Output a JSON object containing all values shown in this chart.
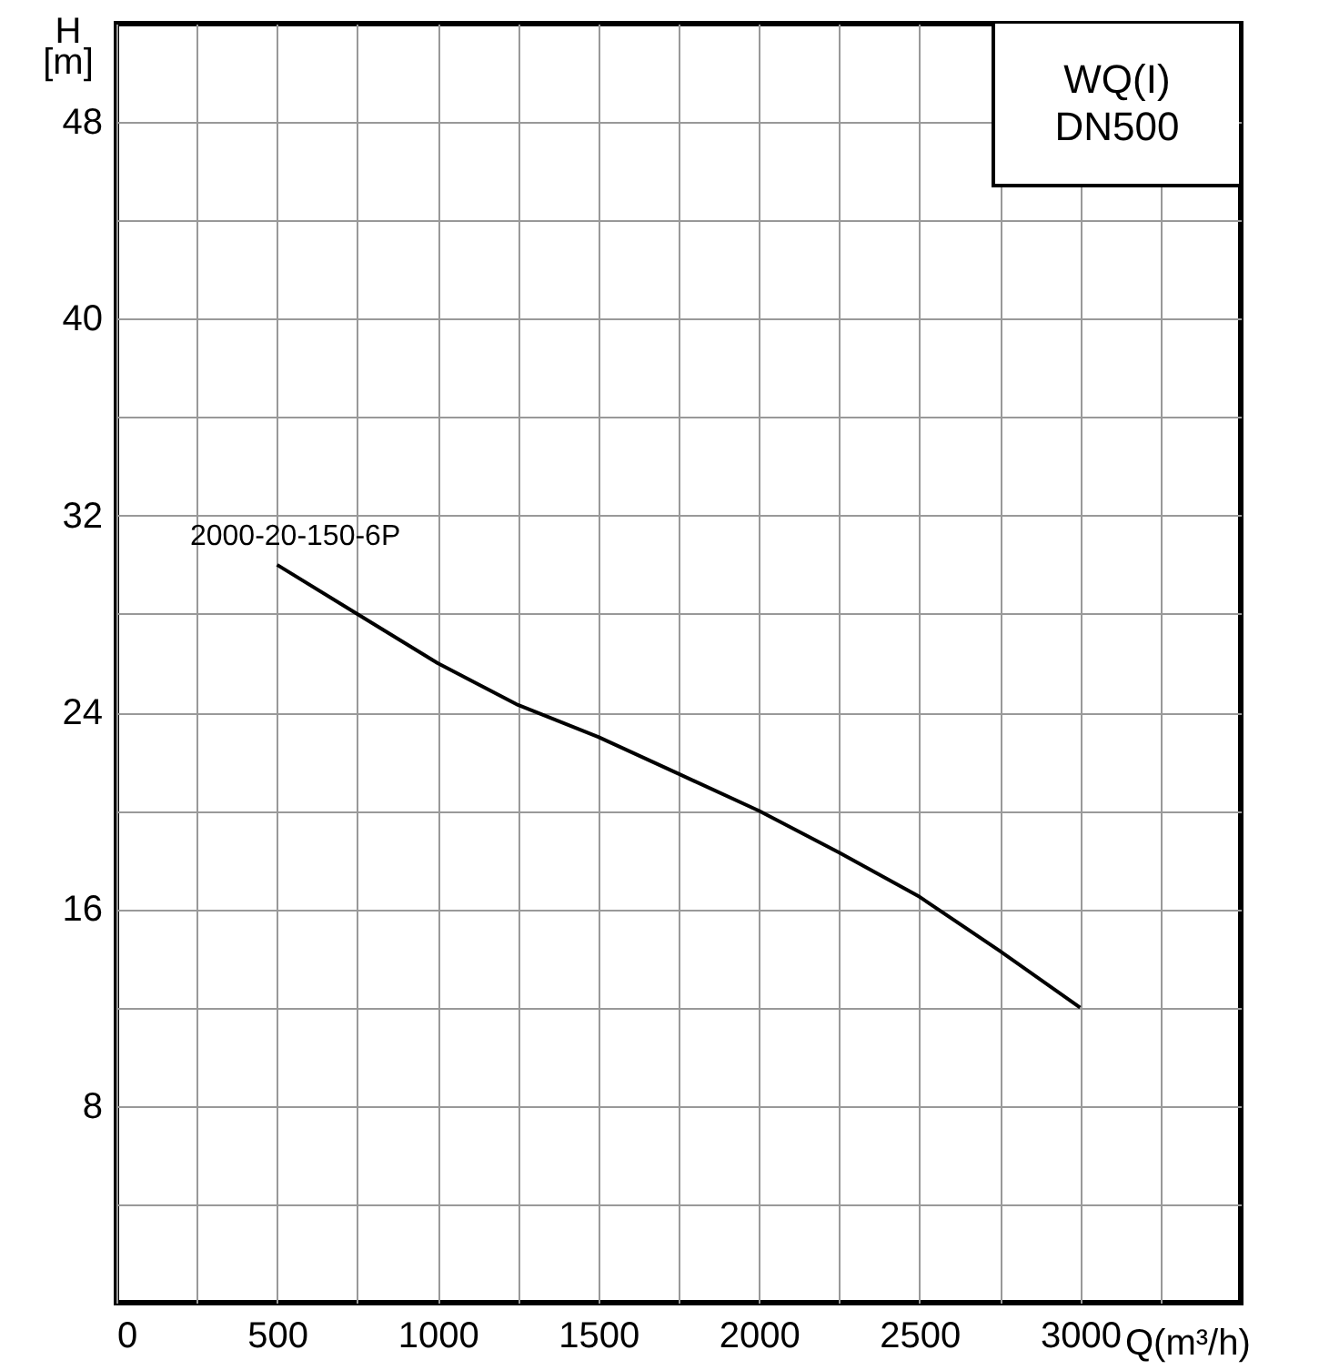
{
  "chart_data": {
    "type": "line",
    "title": "WQ(I) DN500",
    "xlabel": "Q(m³/h)",
    "ylabel": "H [m]",
    "xlim": [
      0,
      3500
    ],
    "ylim": [
      0,
      52
    ],
    "xticks": [
      0,
      {
        "value": 250,
        "label": null
      },
      500,
      {
        "value": 750,
        "label": null
      },
      1000,
      {
        "value": 1250,
        "label": null
      },
      1500,
      {
        "value": 1750,
        "label": null
      },
      2000,
      {
        "value": 2250,
        "label": null
      },
      2500,
      {
        "value": 2750,
        "label": null
      },
      3000,
      {
        "value": 3250,
        "label": null
      }
    ],
    "yticks": [
      {
        "value": 4,
        "label": null
      },
      8,
      {
        "value": 12,
        "label": null
      },
      16,
      {
        "value": 20,
        "label": null
      },
      24,
      {
        "value": 28,
        "label": null
      },
      32,
      {
        "value": 36,
        "label": null
      },
      40,
      {
        "value": 44,
        "label": null
      },
      48
    ],
    "grid": true,
    "marker": "none",
    "line_style": "solid",
    "x": [
      500,
      750,
      1000,
      1250,
      1500,
      1750,
      2000,
      2250,
      2500,
      2750,
      3000
    ],
    "series": [
      {
        "color": "#000000",
        "values": [
          30,
          28,
          26,
          24.3,
          23,
          21.5,
          20,
          18.3,
          16.5,
          14.3,
          12
        ]
      }
    ],
    "annotations": [
      {
        "text": "2000-20-150-6P",
        "x": 500,
        "y": 30
      }
    ]
  }
}
